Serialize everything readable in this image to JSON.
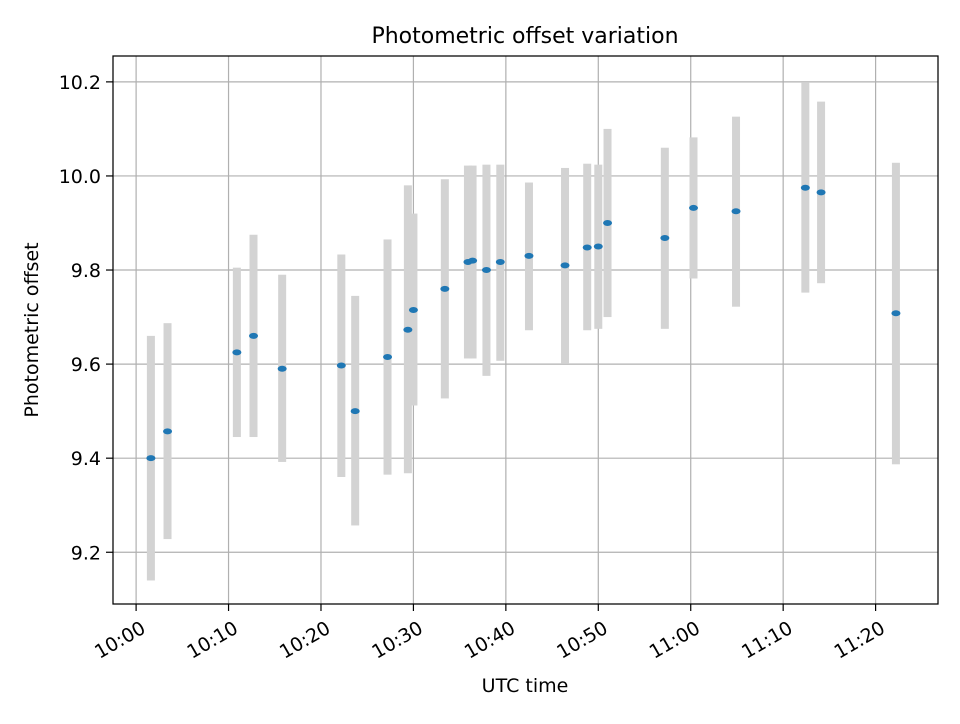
{
  "chart_data": {
    "type": "scatter",
    "title": "Photometric offset variation",
    "xlabel": "UTC time",
    "ylabel": "Photometric offset",
    "x_unit": "time (HH:MM UTC)",
    "xlim": [
      "09:57:30",
      "11:26:45"
    ],
    "ylim": [
      9.09,
      10.255
    ],
    "xticks": [
      "10:00",
      "10:10",
      "10:20",
      "10:30",
      "10:40",
      "10:50",
      "11:00",
      "11:10",
      "11:20"
    ],
    "yticks": [
      "9.2",
      "9.4",
      "9.6",
      "9.8",
      "10.0",
      "10.2"
    ],
    "grid": true,
    "legend": "none",
    "colors": {
      "point": "#1f77b4",
      "errorbar": "#d3d3d3",
      "grid": "#b0b0b0"
    },
    "series": [
      {
        "points": [
          {
            "x": "10:01:36",
            "y": 9.4,
            "lo": 9.14,
            "hi": 9.66
          },
          {
            "x": "10:03:24",
            "y": 9.457,
            "lo": 9.228,
            "hi": 9.687
          },
          {
            "x": "10:10:54",
            "y": 9.625,
            "lo": 9.445,
            "hi": 9.805
          },
          {
            "x": "10:12:42",
            "y": 9.66,
            "lo": 9.445,
            "hi": 9.875
          },
          {
            "x": "10:15:48",
            "y": 9.59,
            "lo": 9.392,
            "hi": 9.79
          },
          {
            "x": "10:22:12",
            "y": 9.597,
            "lo": 9.36,
            "hi": 9.833
          },
          {
            "x": "10:23:42",
            "y": 9.5,
            "lo": 9.257,
            "hi": 9.745
          },
          {
            "x": "10:27:12",
            "y": 9.615,
            "lo": 9.365,
            "hi": 9.865
          },
          {
            "x": "10:29:24",
            "y": 9.673,
            "lo": 9.368,
            "hi": 9.98
          },
          {
            "x": "10:30:00",
            "y": 9.715,
            "lo": 9.512,
            "hi": 9.92
          },
          {
            "x": "10:33:24",
            "y": 9.76,
            "lo": 9.527,
            "hi": 9.993
          },
          {
            "x": "10:35:54",
            "y": 9.817,
            "lo": 9.612,
            "hi": 10.022
          },
          {
            "x": "10:36:24",
            "y": 9.82,
            "lo": 9.612,
            "hi": 10.022
          },
          {
            "x": "10:37:54",
            "y": 9.8,
            "lo": 9.575,
            "hi": 10.024
          },
          {
            "x": "10:39:24",
            "y": 9.817,
            "lo": 9.607,
            "hi": 10.024
          },
          {
            "x": "10:42:30",
            "y": 9.83,
            "lo": 9.672,
            "hi": 9.986
          },
          {
            "x": "10:46:24",
            "y": 9.81,
            "lo": 9.602,
            "hi": 10.017
          },
          {
            "x": "10:48:48",
            "y": 9.848,
            "lo": 9.672,
            "hi": 10.026
          },
          {
            "x": "10:50:00",
            "y": 9.85,
            "lo": 9.675,
            "hi": 10.024
          },
          {
            "x": "10:51:00",
            "y": 9.9,
            "lo": 9.7,
            "hi": 10.1
          },
          {
            "x": "10:57:12",
            "y": 9.868,
            "lo": 9.675,
            "hi": 10.06
          },
          {
            "x": "11:00:18",
            "y": 9.932,
            "lo": 9.782,
            "hi": 10.082
          },
          {
            "x": "11:04:54",
            "y": 9.925,
            "lo": 9.722,
            "hi": 10.126
          },
          {
            "x": "11:12:24",
            "y": 9.975,
            "lo": 9.752,
            "hi": 10.198
          },
          {
            "x": "11:14:06",
            "y": 9.965,
            "lo": 9.772,
            "hi": 10.158
          },
          {
            "x": "11:22:12",
            "y": 9.708,
            "lo": 9.387,
            "hi": 10.028
          }
        ]
      }
    ]
  }
}
